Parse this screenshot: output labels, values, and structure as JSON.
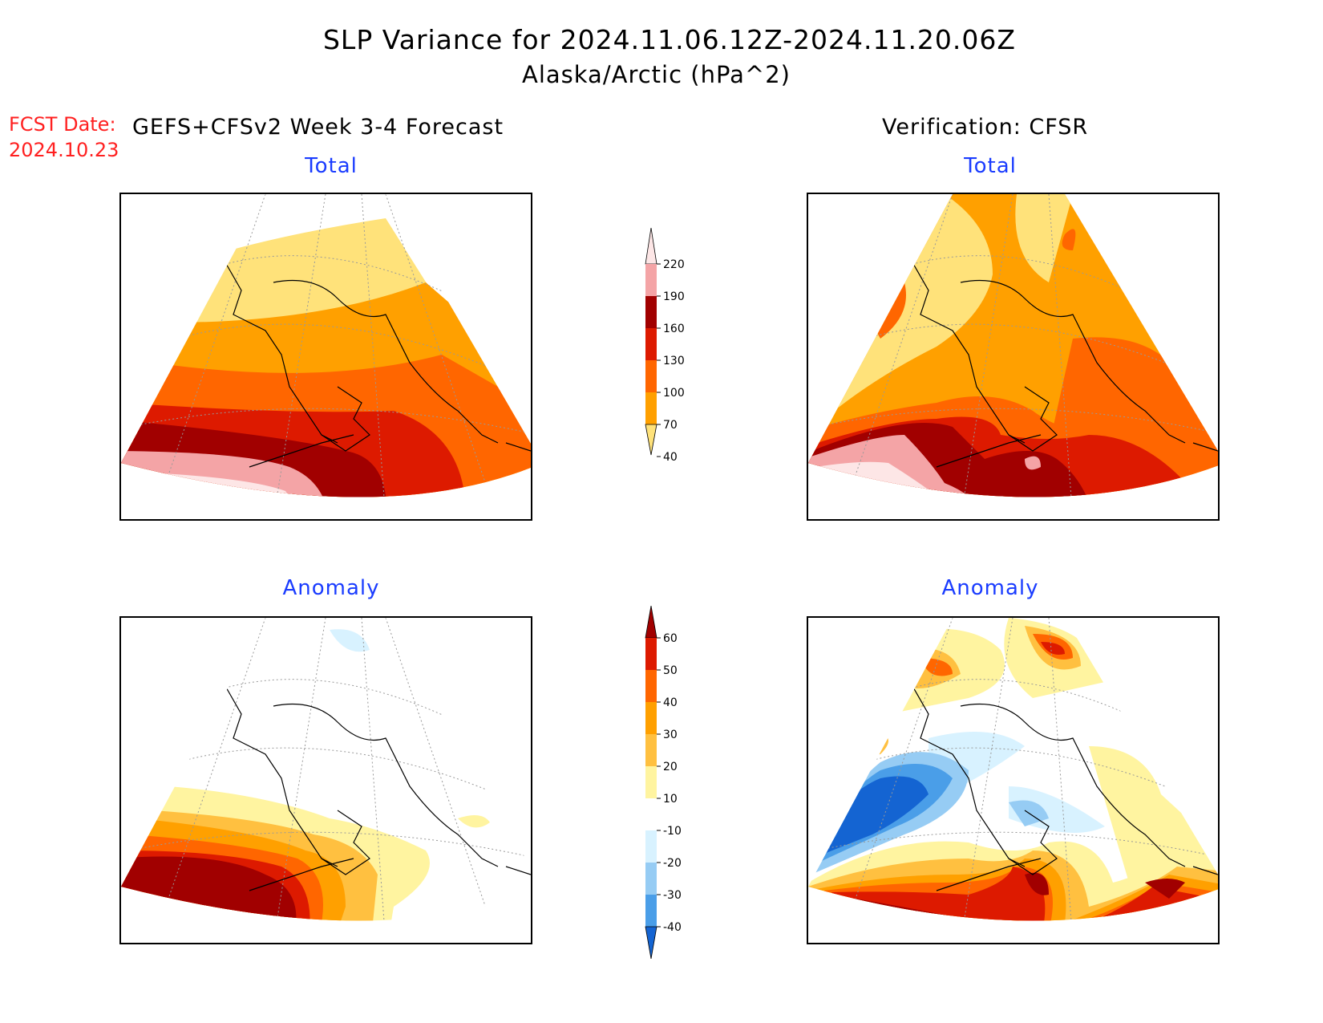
{
  "header": {
    "title": "SLP Variance for 2024.11.06.12Z-2024.11.20.06Z",
    "subtitle": "Alaska/Arctic (hPa^2)",
    "fcst_label": "FCST Date:",
    "fcst_date": "2024.10.23",
    "left_heading": "GEFS+CFSv2 Week 3-4 Forecast",
    "right_heading": "Verification: CFSR"
  },
  "panels": {
    "forecast_total": {
      "title": "Total"
    },
    "verification_total": {
      "title": "Total"
    },
    "forecast_anomaly": {
      "title": "Anomaly"
    },
    "verification_anomaly": {
      "title": "Anomaly"
    }
  },
  "colorbars": {
    "total": {
      "labels": [
        "220",
        "190",
        "160",
        "130",
        "100",
        "70",
        "40"
      ],
      "colors": [
        "#fde6e6",
        "#f4a4a6",
        "#a10000",
        "#dd1a00",
        "#ff6600",
        "#ffa000",
        "#ffe27a"
      ]
    },
    "anomaly": {
      "labels": [
        "60",
        "50",
        "40",
        "30",
        "20",
        "10",
        "-10",
        "-20",
        "-30",
        "-40"
      ],
      "colors": [
        "#a10000",
        "#dd1a00",
        "#ff6600",
        "#ffa000",
        "#ffc040",
        "#fff4a0",
        "#ffffff",
        "#d8f2ff",
        "#96ccf4",
        "#4a9ee8",
        "#1464d2"
      ]
    }
  }
}
